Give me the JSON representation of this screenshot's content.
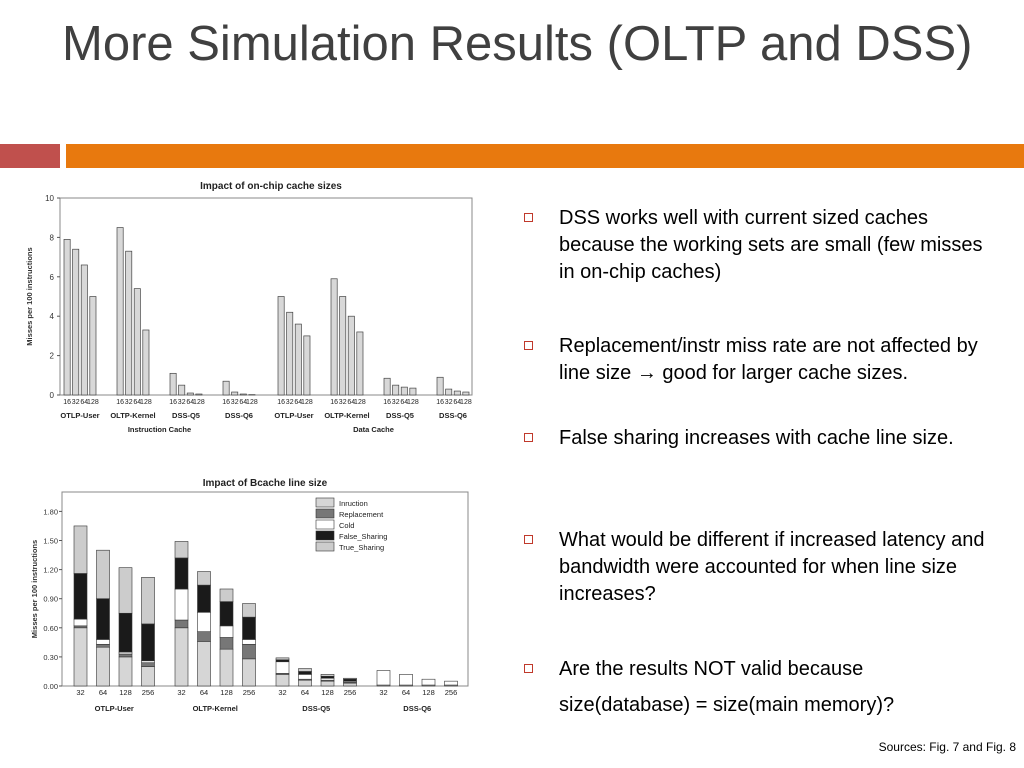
{
  "slide": {
    "title": "More Simulation Results (OLTP and DSS)",
    "accent_colors": {
      "left_bar": "#c0504d",
      "right_bar": "#e8790e"
    },
    "bullets": [
      "DSS works well with current sized caches because the working sets are small (few misses in on-chip caches)",
      "Replacement/instr miss rate are not affected by line size → good for larger cache sizes.",
      "False sharing increases with cache line size.",
      "What would be different if increased latency and bandwidth were accounted for when line size increases?",
      "Are the results NOT valid because",
      "size(database) = size(main memory)?"
    ],
    "sources": "Sources: Fig. 7 and Fig. 8"
  },
  "chart_data": [
    {
      "type": "bar",
      "title": "Impact of on-chip cache sizes",
      "ylabel": "Misses per 100 instructions",
      "ylim": [
        0,
        10
      ],
      "yticks": [
        "0",
        "2",
        "4",
        "6",
        "8",
        "10"
      ],
      "x_tick_labels": [
        "16",
        "32",
        "64",
        "128"
      ],
      "groups": [
        {
          "label": "Instruction Cache",
          "workloads": [
            {
              "name": "OTLP-User",
              "values": [
                7.9,
                7.4,
                6.6,
                5.0
              ]
            },
            {
              "name": "OLTP-Kernel",
              "values": [
                8.5,
                7.3,
                5.4,
                3.3
              ]
            },
            {
              "name": "DSS-Q5",
              "values": [
                1.1,
                0.5,
                0.1,
                0.05
              ]
            },
            {
              "name": "DSS-Q6",
              "values": [
                0.7,
                0.15,
                0.05,
                0.02
              ]
            }
          ]
        },
        {
          "label": "Data Cache",
          "workloads": [
            {
              "name": "OTLP-User",
              "values": [
                5.0,
                4.2,
                3.6,
                3.0
              ]
            },
            {
              "name": "OLTP-Kernel",
              "values": [
                5.9,
                5.0,
                4.0,
                3.2
              ]
            },
            {
              "name": "DSS-Q5",
              "values": [
                0.85,
                0.5,
                0.4,
                0.35
              ]
            },
            {
              "name": "DSS-Q6",
              "values": [
                0.9,
                0.3,
                0.2,
                0.15
              ]
            }
          ]
        }
      ]
    },
    {
      "type": "bar",
      "title": "Impact of Bcache line size",
      "ylabel": "Misses per 100 instructions",
      "ylim": [
        0,
        2.0
      ],
      "yticks": [
        "0.00",
        "0.30",
        "0.60",
        "0.90",
        "1.20",
        "1.50",
        "1.80"
      ],
      "legend_position": "top-right",
      "series": [
        {
          "name": "Inruction",
          "color": "#d6d6d6"
        },
        {
          "name": "Replacement",
          "color": "#777777"
        },
        {
          "name": "Cold",
          "color": "#ffffff"
        },
        {
          "name": "False_Sharing",
          "color": "#1a1a1a"
        },
        {
          "name": "True_Sharing",
          "color": "#cccccc"
        }
      ],
      "workloads": [
        {
          "name": "OTLP-User",
          "line_sizes": [
            "32",
            "64",
            "128",
            "256"
          ],
          "stacks": [
            [
              0.6,
              0.02,
              0.07,
              0.47,
              0.49
            ],
            [
              0.4,
              0.03,
              0.05,
              0.42,
              0.5
            ],
            [
              0.3,
              0.03,
              0.02,
              0.4,
              0.47
            ],
            [
              0.2,
              0.04,
              0.02,
              0.38,
              0.48
            ]
          ]
        },
        {
          "name": "OLTP-Kernel",
          "line_sizes": [
            "32",
            "64",
            "128",
            "256"
          ],
          "stacks": [
            [
              0.6,
              0.08,
              0.32,
              0.32,
              0.17
            ],
            [
              0.46,
              0.1,
              0.2,
              0.28,
              0.14
            ],
            [
              0.38,
              0.12,
              0.12,
              0.25,
              0.13
            ],
            [
              0.28,
              0.15,
              0.05,
              0.23,
              0.14
            ]
          ]
        },
        {
          "name": "DSS-Q5",
          "line_sizes": [
            "32",
            "64",
            "128",
            "256"
          ],
          "stacks": [
            [
              0.12,
              0.01,
              0.12,
              0.02,
              0.02
            ],
            [
              0.06,
              0.01,
              0.05,
              0.03,
              0.03
            ],
            [
              0.05,
              0.01,
              0.02,
              0.02,
              0.02
            ],
            [
              0.03,
              0.01,
              0.01,
              0.02,
              0.01
            ]
          ]
        },
        {
          "name": "DSS-Q6",
          "line_sizes": [
            "32",
            "64",
            "128",
            "256"
          ],
          "stacks": [
            [
              0.01,
              0.0,
              0.15,
              0.0,
              0.0
            ],
            [
              0.01,
              0.0,
              0.11,
              0.0,
              0.0
            ],
            [
              0.01,
              0.0,
              0.06,
              0.0,
              0.0
            ],
            [
              0.01,
              0.0,
              0.04,
              0.0,
              0.0
            ]
          ]
        }
      ]
    }
  ]
}
